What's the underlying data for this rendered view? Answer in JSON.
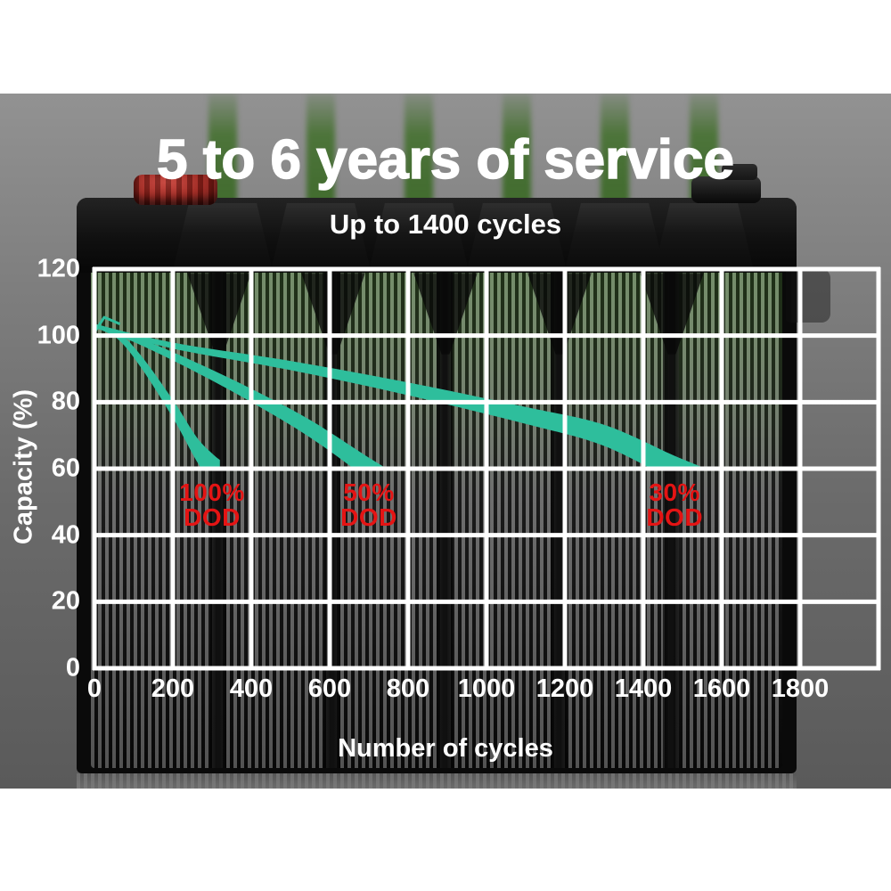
{
  "title": "5 to 6 years of service",
  "subtitle": "Up to 1400 cycles",
  "colors": {
    "curve_teal": "#2ebe9c",
    "dod_label_red": "#e41414",
    "grid_white": "#ffffff",
    "background_gray": "#7e7e7e",
    "cell_glow_green": "#3f6e2c",
    "terminal_red": "#9c221b"
  },
  "chart_data": {
    "type": "area",
    "title": "Battery capacity retention vs number of cycles by depth of discharge",
    "xlabel": "Number of cycles",
    "ylabel": "Capacity (%)",
    "xlim": [
      0,
      2000
    ],
    "ylim": [
      0,
      120
    ],
    "grid": true,
    "x_tick_step": 200,
    "y_tick_step": 20,
    "x_ticks": [
      "0",
      "200",
      "400",
      "600",
      "800",
      "1000",
      "1200",
      "1400",
      "1600",
      "1800"
    ],
    "y_ticks_top_to_bottom": [
      "120",
      "100",
      "80",
      "60",
      "40",
      "20",
      "0"
    ],
    "series": [
      {
        "name": "100% DOD",
        "label_lines": "100%\nDOD",
        "points": [
          [
            0,
            103
          ],
          [
            60,
            100
          ],
          [
            120,
            92
          ],
          [
            200,
            78
          ],
          [
            260,
            66
          ],
          [
            300,
            60
          ]
        ]
      },
      {
        "name": "50% DOD",
        "label_lines": "50%\nDOD",
        "points": [
          [
            0,
            103
          ],
          [
            100,
            99
          ],
          [
            250,
            91
          ],
          [
            400,
            82
          ],
          [
            550,
            72
          ],
          [
            700,
            60
          ]
        ]
      },
      {
        "name": "30% DOD",
        "label_lines": "30%\nDOD",
        "points": [
          [
            0,
            103
          ],
          [
            200,
            97
          ],
          [
            500,
            91
          ],
          [
            800,
            84
          ],
          [
            1100,
            76
          ],
          [
            1300,
            70
          ],
          [
            1480,
            60
          ]
        ]
      }
    ]
  }
}
